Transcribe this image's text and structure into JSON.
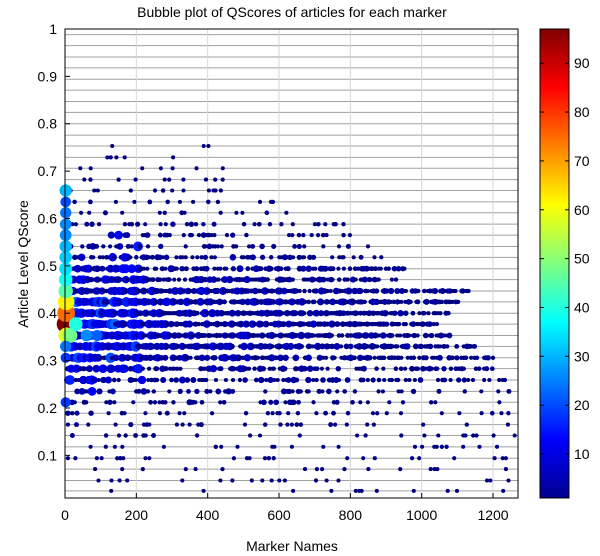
{
  "chart_data": {
    "type": "scatter",
    "title": "Bubble plot of QScores of articles for each marker",
    "xlabel": "Marker Names",
    "ylabel": "Article Level QScore",
    "xlim": [
      0,
      1270
    ],
    "ylim": [
      0.01,
      1.0
    ],
    "x_ticks": [
      "0",
      "200",
      "400",
      "600",
      "800",
      "1000",
      "1200"
    ],
    "y_ticks": [
      "0.1",
      "0.2",
      "0.3",
      "0.4",
      "0.5",
      "0.6",
      "0.7",
      "0.8",
      "0.9",
      "1"
    ],
    "grid": true,
    "bubble_size_and_color": "count",
    "colormap": "jet",
    "colorbar": {
      "range": [
        1,
        97
      ],
      "ticks": [
        "10",
        "20",
        "30",
        "40",
        "50",
        "60",
        "70",
        "80",
        "90"
      ]
    },
    "qscore_levels": [
      0.025,
      0.047,
      0.071,
      0.094,
      0.118,
      0.142,
      0.165,
      0.189,
      0.212,
      0.235,
      0.259,
      0.283,
      0.306,
      0.33,
      0.353,
      0.377,
      0.4,
      0.424,
      0.447,
      0.471,
      0.494,
      0.518,
      0.541,
      0.565,
      0.588,
      0.612,
      0.635,
      0.659,
      0.682,
      0.706,
      0.729,
      0.753,
      0.776,
      0.8,
      0.824,
      0.847,
      0.871,
      0.894,
      0.918,
      0.941,
      0.965,
      0.988
    ],
    "row_extent_max_x": [
      1270,
      1270,
      1270,
      1270,
      1270,
      1270,
      1260,
      1250,
      1250,
      1250,
      1240,
      1220,
      1200,
      1150,
      1080,
      1050,
      1080,
      1110,
      1140,
      950,
      970,
      900,
      860,
      820,
      790,
      750,
      700,
      680,
      560,
      480,
      480,
      450
    ],
    "highlights": [
      {
        "x": 2,
        "y": 0.377,
        "count": 97
      },
      {
        "x": 3,
        "y": 0.4,
        "count": 75
      },
      {
        "x": 3,
        "y": 0.424,
        "count": 62
      },
      {
        "x": 2,
        "y": 0.447,
        "count": 45
      },
      {
        "x": 4,
        "y": 0.353,
        "count": 58
      },
      {
        "x": 14,
        "y": 0.353,
        "count": 48
      },
      {
        "x": 30,
        "y": 0.377,
        "count": 40
      },
      {
        "x": 2,
        "y": 0.471,
        "count": 38
      },
      {
        "x": 2,
        "y": 0.494,
        "count": 34
      },
      {
        "x": 2,
        "y": 0.518,
        "count": 32
      },
      {
        "x": 2,
        "y": 0.541,
        "count": 30
      },
      {
        "x": 2,
        "y": 0.565,
        "count": 26
      },
      {
        "x": 2,
        "y": 0.588,
        "count": 26
      },
      {
        "x": 2,
        "y": 0.612,
        "count": 24
      },
      {
        "x": 2,
        "y": 0.635,
        "count": 20
      },
      {
        "x": 2,
        "y": 0.659,
        "count": 30
      },
      {
        "x": 2,
        "y": 0.33,
        "count": 24
      },
      {
        "x": 2,
        "y": 0.306,
        "count": 18
      },
      {
        "x": 2,
        "y": 0.212,
        "count": 18
      },
      {
        "x": 60,
        "y": 0.353,
        "count": 26
      },
      {
        "x": 90,
        "y": 0.353,
        "count": 22
      }
    ]
  }
}
